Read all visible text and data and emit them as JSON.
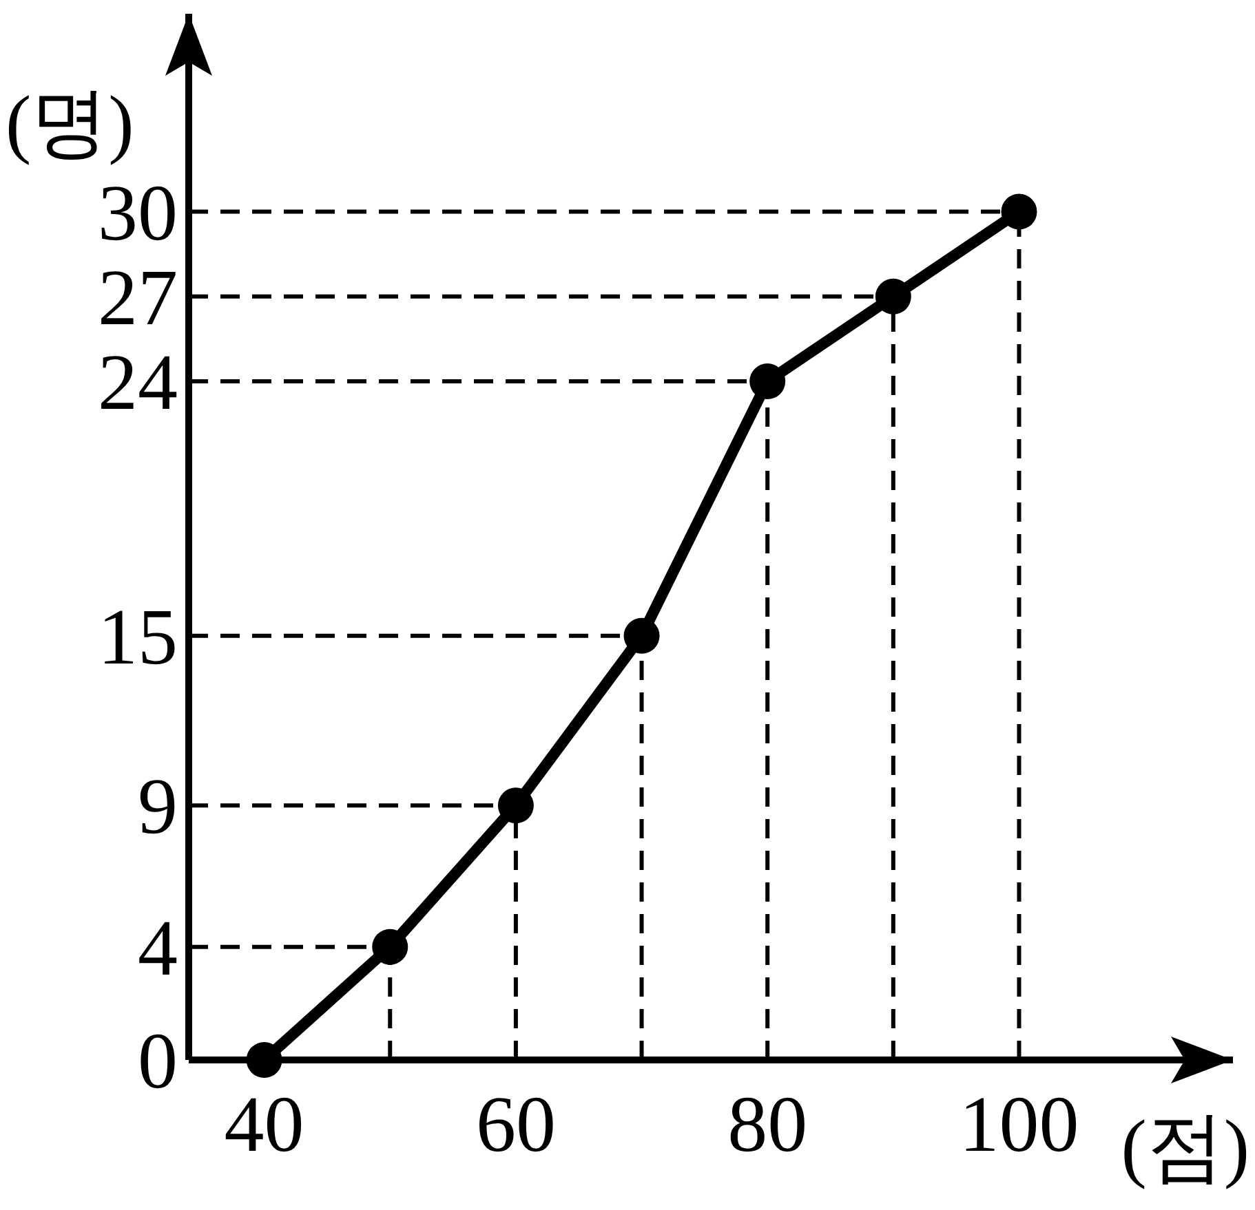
{
  "chart_data": {
    "type": "line",
    "xlabel": "(점)",
    "ylabel": "(명)",
    "x": [
      40,
      50,
      60,
      70,
      80,
      90,
      100
    ],
    "series": [
      {
        "color": "#000000",
        "values": [
          0,
          4,
          9,
          15,
          24,
          27,
          30
        ]
      }
    ],
    "xlim": [
      34,
      117
    ],
    "ylim": [
      0,
      37
    ],
    "xticks": [
      40,
      60,
      80,
      100
    ],
    "yticks": [
      0,
      4,
      9,
      15,
      24,
      27,
      30
    ],
    "ref_lines": [
      {
        "axis": "y",
        "value": 4,
        "line_style": "dashed"
      },
      {
        "axis": "y",
        "value": 9,
        "line_style": "dashed"
      },
      {
        "axis": "y",
        "value": 15,
        "line_style": "dashed"
      },
      {
        "axis": "y",
        "value": 24,
        "line_style": "dashed"
      },
      {
        "axis": "y",
        "value": 27,
        "line_style": "dashed"
      },
      {
        "axis": "y",
        "value": 30,
        "line_style": "dashed"
      },
      {
        "axis": "x",
        "value": 50,
        "line_style": "dashed"
      },
      {
        "axis": "x",
        "value": 60,
        "line_style": "dashed"
      },
      {
        "axis": "x",
        "value": 70,
        "line_style": "dashed"
      },
      {
        "axis": "x",
        "value": 80,
        "line_style": "dashed"
      },
      {
        "axis": "x",
        "value": 90,
        "line_style": "dashed"
      },
      {
        "axis": "x",
        "value": 100,
        "line_style": "dashed"
      }
    ],
    "marker": "circle",
    "line_style": "solid",
    "grid": false
  }
}
